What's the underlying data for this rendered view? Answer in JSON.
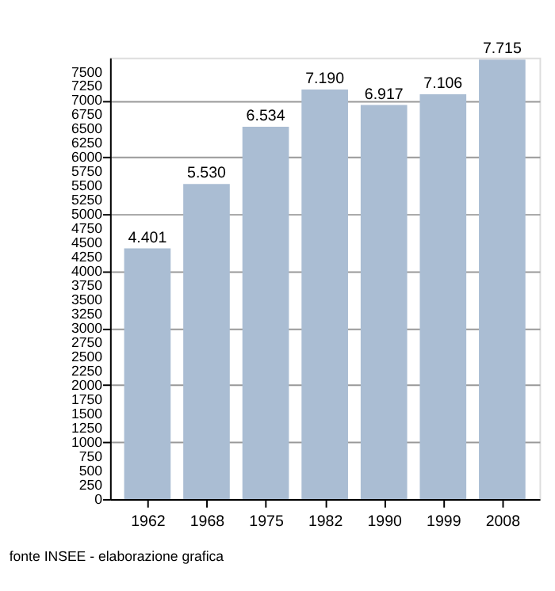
{
  "chart_data": {
    "type": "bar",
    "categories": [
      "1962",
      "1968",
      "1975",
      "1982",
      "1990",
      "1999",
      "2008"
    ],
    "values": [
      4401,
      5530,
      6534,
      7190,
      6917,
      7106,
      7715
    ],
    "value_labels": [
      "4.401",
      "5.530",
      "6.534",
      "7.190",
      "6.917",
      "7.106",
      "7.715"
    ],
    "color": "#aabdd3",
    "ylim": [
      0,
      7750
    ],
    "yticks": [
      0,
      250,
      500,
      750,
      1000,
      1250,
      1500,
      1750,
      2000,
      2250,
      2500,
      2750,
      3000,
      3250,
      3500,
      3750,
      4000,
      4250,
      4500,
      4750,
      5000,
      5250,
      5500,
      5750,
      6000,
      6250,
      6500,
      6750,
      7000,
      7250,
      7500
    ],
    "grid": "y",
    "annotations": [
      "fonte INSEE - elaborazione grafica"
    ]
  }
}
